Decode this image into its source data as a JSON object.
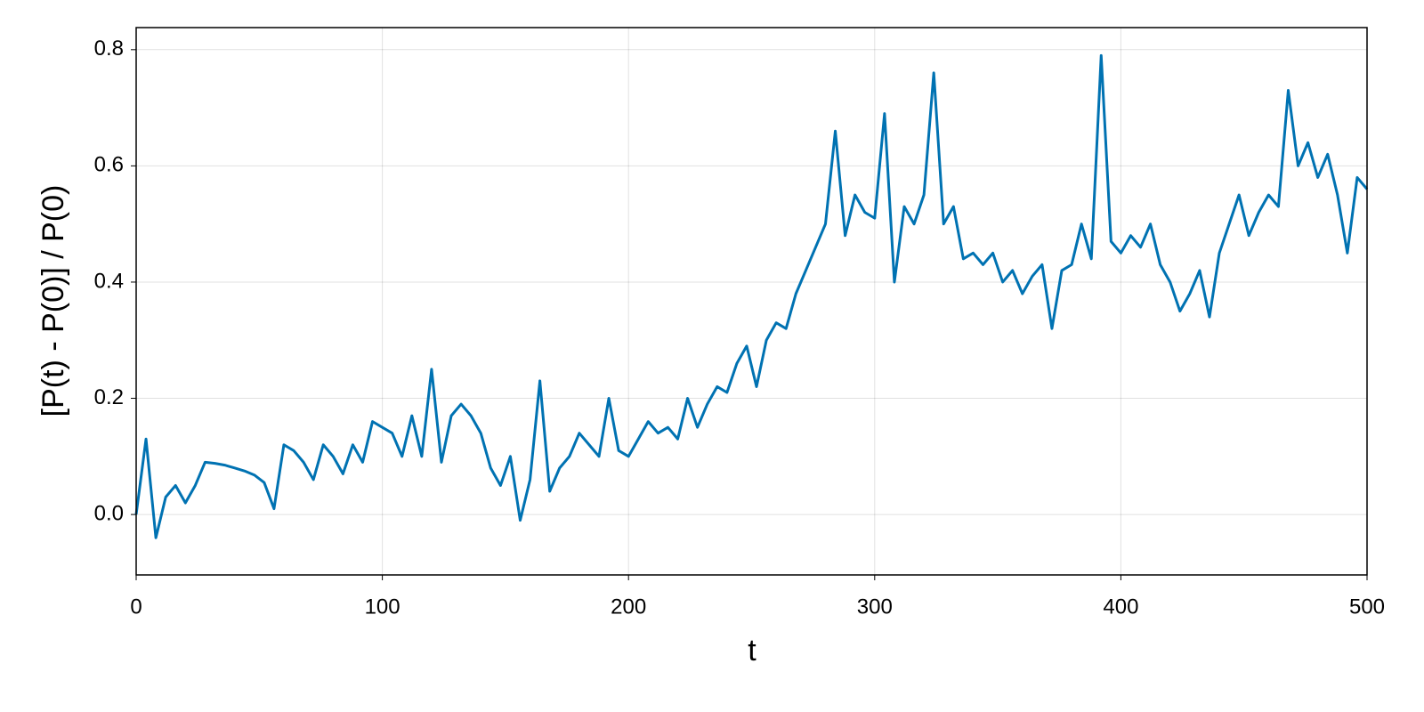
{
  "chart_data": {
    "type": "line",
    "x_label": "t",
    "y_label": "[P(t) - P(0)] / P(0)",
    "x": [
      0,
      4,
      8,
      12,
      16,
      20,
      24,
      28,
      32,
      36,
      40,
      44,
      48,
      52,
      56,
      60,
      64,
      68,
      72,
      76,
      80,
      84,
      88,
      92,
      96,
      100,
      104,
      108,
      112,
      116,
      120,
      124,
      128,
      132,
      136,
      140,
      144,
      148,
      152,
      156,
      160,
      164,
      168,
      172,
      176,
      180,
      184,
      188,
      192,
      196,
      200,
      204,
      208,
      212,
      216,
      220,
      224,
      228,
      232,
      236,
      240,
      244,
      248,
      252,
      256,
      260,
      264,
      268,
      272,
      276,
      280,
      284,
      288,
      292,
      296,
      300,
      304,
      308,
      312,
      316,
      320,
      324,
      328,
      332,
      336,
      340,
      344,
      348,
      352,
      356,
      360,
      364,
      368,
      372,
      376,
      380,
      384,
      388,
      392,
      396,
      400,
      404,
      408,
      412,
      416,
      420,
      424,
      428,
      432,
      436,
      440,
      444,
      448,
      452,
      456,
      460,
      464,
      468,
      472,
      476,
      480,
      484,
      488,
      492,
      496,
      500
    ],
    "series": [
      {
        "color": "#0072b2",
        "values": [
          0.0,
          0.13,
          -0.04,
          0.03,
          0.05,
          0.02,
          0.05,
          0.09,
          0.088,
          0.085,
          0.08,
          0.075,
          0.068,
          0.055,
          0.01,
          0.12,
          0.11,
          0.09,
          0.06,
          0.12,
          0.1,
          0.07,
          0.12,
          0.09,
          0.16,
          0.15,
          0.14,
          0.1,
          0.17,
          0.1,
          0.25,
          0.09,
          0.17,
          0.19,
          0.17,
          0.14,
          0.08,
          0.05,
          0.1,
          -0.01,
          0.06,
          0.23,
          0.04,
          0.08,
          0.1,
          0.14,
          0.12,
          0.1,
          0.2,
          0.11,
          0.1,
          0.13,
          0.16,
          0.14,
          0.15,
          0.13,
          0.2,
          0.15,
          0.19,
          0.22,
          0.21,
          0.26,
          0.29,
          0.22,
          0.3,
          0.33,
          0.32,
          0.38,
          0.42,
          0.46,
          0.5,
          0.66,
          0.48,
          0.55,
          0.52,
          0.51,
          0.69,
          0.4,
          0.53,
          0.5,
          0.55,
          0.76,
          0.5,
          0.53,
          0.44,
          0.45,
          0.43,
          0.45,
          0.4,
          0.42,
          0.38,
          0.41,
          0.43,
          0.32,
          0.42,
          0.43,
          0.5,
          0.44,
          0.79,
          0.47,
          0.45,
          0.48,
          0.46,
          0.5,
          0.43,
          0.4,
          0.35,
          0.38,
          0.42,
          0.34,
          0.45,
          0.5,
          0.55,
          0.48,
          0.52,
          0.55,
          0.53,
          0.73,
          0.6,
          0.64,
          0.58,
          0.62,
          0.55,
          0.45,
          0.58,
          0.56
        ]
      }
    ],
    "xlim": [
      0,
      500
    ],
    "xticks": [
      0,
      100,
      200,
      300,
      400,
      500
    ],
    "ylim": [
      -0.104,
      0.838
    ],
    "yticks": [
      {
        "value": 0,
        "label": "0.0"
      },
      0.2,
      0.4,
      0.6,
      0.8
    ],
    "grid": true
  }
}
